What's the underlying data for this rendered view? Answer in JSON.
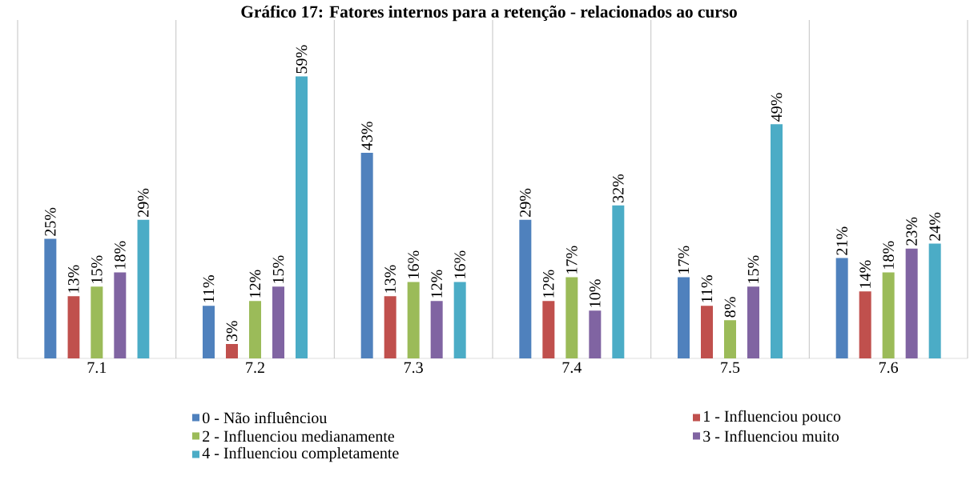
{
  "chart_data": {
    "type": "bar",
    "title": "Gráfico 17: Fatores internos para a retenção - relacionados ao curso",
    "categories": [
      "7.1",
      "7.2",
      "7.3",
      "7.4",
      "7.5",
      "7.6"
    ],
    "series": [
      {
        "name": "0 - Não influênciou",
        "color": "#4f81bd",
        "values": [
          25,
          11,
          43,
          29,
          17,
          21
        ],
        "value_labels": [
          "25%",
          "11%",
          "43%",
          "29%",
          "17%",
          "21%"
        ]
      },
      {
        "name": "1 - Influenciou pouco",
        "color": "#c0504d",
        "values": [
          13,
          3,
          13,
          12,
          11,
          14
        ],
        "value_labels": [
          "13%",
          "3%",
          "13%",
          "12%",
          "11%",
          "14%"
        ]
      },
      {
        "name": "2 - Influenciou medianamente",
        "color": "#9bbb59",
        "values": [
          15,
          12,
          16,
          17,
          8,
          18
        ],
        "value_labels": [
          "15%",
          "12%",
          "16%",
          "17%",
          "8%",
          "18%"
        ]
      },
      {
        "name": "3 - Influenciou muito",
        "color": "#8064a2",
        "values": [
          18,
          15,
          12,
          10,
          15,
          23
        ],
        "value_labels": [
          "18%",
          "15%",
          "12%",
          "10%",
          "15%",
          "23%"
        ]
      },
      {
        "name": "4 - Influenciou completamente",
        "color": "#4bacc6",
        "values": [
          29,
          59,
          16,
          32,
          49,
          24
        ],
        "value_labels": [
          "29%",
          "59%",
          "16%",
          "32%",
          "49%",
          "24%"
        ]
      }
    ],
    "grid": "x",
    "legend": "bottom"
  }
}
